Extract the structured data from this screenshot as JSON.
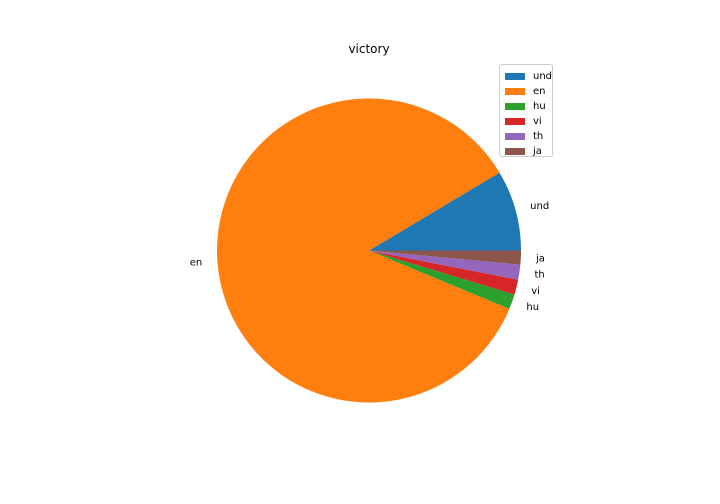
{
  "chart_data": {
    "type": "pie",
    "title": "victory",
    "categories": [
      "und",
      "en",
      "hu",
      "vi",
      "th",
      "ja"
    ],
    "values": [
      8.6,
      85.5,
      1.6,
      1.6,
      1.6,
      1.5
    ],
    "colors": [
      "#1f77b4",
      "#ff7f0e",
      "#2ca02c",
      "#d62728",
      "#9467bd",
      "#8c564b"
    ],
    "legend": {
      "placement": "top-right",
      "entries": [
        "und",
        "en",
        "hu",
        "vi",
        "th",
        "ja"
      ]
    }
  }
}
